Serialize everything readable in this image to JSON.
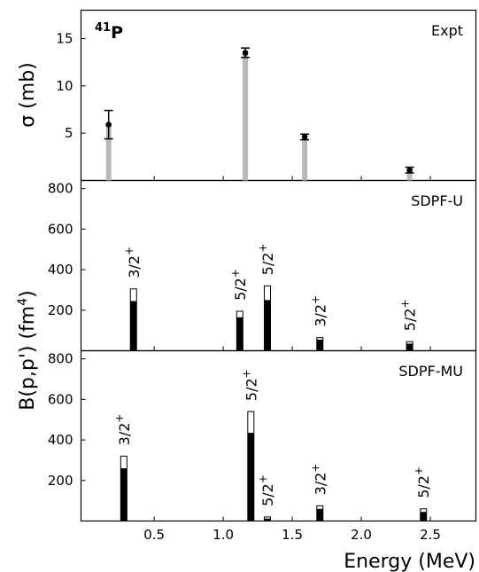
{
  "chart_data": {
    "type": "bar",
    "xlabel": "Energy (MeV)",
    "xlim": [
      -0.03,
      2.83
    ],
    "x_ticks": [
      0.5,
      1.0,
      1.5,
      2.0,
      2.5
    ],
    "x_tick_labels": [
      "0.5",
      "1.0",
      "1.5",
      "2.0",
      "2.5"
    ],
    "nucleus_base": "P",
    "nucleus_mass": "41",
    "panels": [
      {
        "key": "expt",
        "label": "Expt",
        "ylabel": "σ (mb)",
        "ylim": [
          0,
          18
        ],
        "y_ticks": [
          5,
          10,
          15
        ],
        "y_tick_labels": [
          "5",
          "10",
          "15"
        ],
        "bars": [
          {
            "energy": 0.17,
            "value": 5.9,
            "err": 1.5
          },
          {
            "energy": 1.16,
            "value": 13.5,
            "err": 0.5
          },
          {
            "energy": 1.59,
            "value": 4.6,
            "err": 0.3
          },
          {
            "energy": 2.35,
            "value": 1.1,
            "err": 0.3
          }
        ]
      },
      {
        "key": "sdpf_u",
        "label": "SDPF-U",
        "y_ticks": [
          200,
          400,
          600,
          800
        ],
        "y_tick_labels": [
          "200",
          "400",
          "600",
          "800"
        ],
        "ylim": [
          0,
          840
        ],
        "states": [
          {
            "energy": 0.35,
            "total": 305,
            "part": 245,
            "label": "3/2",
            "parity": "+"
          },
          {
            "energy": 1.12,
            "total": 195,
            "part": 165,
            "label": "5/2",
            "parity": "+"
          },
          {
            "energy": 1.32,
            "total": 320,
            "part": 250,
            "label": "5/2",
            "parity": "+"
          },
          {
            "energy": 1.7,
            "total": 65,
            "part": 55,
            "label": "3/2",
            "parity": "+"
          },
          {
            "energy": 2.35,
            "total": 45,
            "part": 35,
            "label": "5/2",
            "parity": "+"
          }
        ]
      },
      {
        "key": "sdpf_mu",
        "label": "SDPF-MU",
        "y_ticks": [
          200,
          400,
          600,
          800
        ],
        "y_tick_labels": [
          "200",
          "400",
          "600",
          "800"
        ],
        "ylim": [
          0,
          840
        ],
        "states": [
          {
            "energy": 0.28,
            "total": 320,
            "part": 260,
            "label": "3/2",
            "parity": "+"
          },
          {
            "energy": 1.2,
            "total": 540,
            "part": 435,
            "label": "5/2",
            "parity": "+"
          },
          {
            "energy": 1.32,
            "total": 20,
            "part": 12,
            "label": "5/2",
            "parity": "+"
          },
          {
            "energy": 1.7,
            "total": 75,
            "part": 60,
            "label": "3/2",
            "parity": "+"
          },
          {
            "energy": 2.45,
            "total": 60,
            "part": 45,
            "label": "5/2",
            "parity": "+"
          }
        ]
      }
    ],
    "shared_ylabel": "B(p,p') (fm",
    "shared_ylabel_sup": "4",
    "shared_ylabel_end": ")",
    "colors": {
      "expt_bar": "#b9b9b9",
      "theory_part": "#000000",
      "theory_rest": "#ffffff",
      "axis": "#000000"
    }
  }
}
